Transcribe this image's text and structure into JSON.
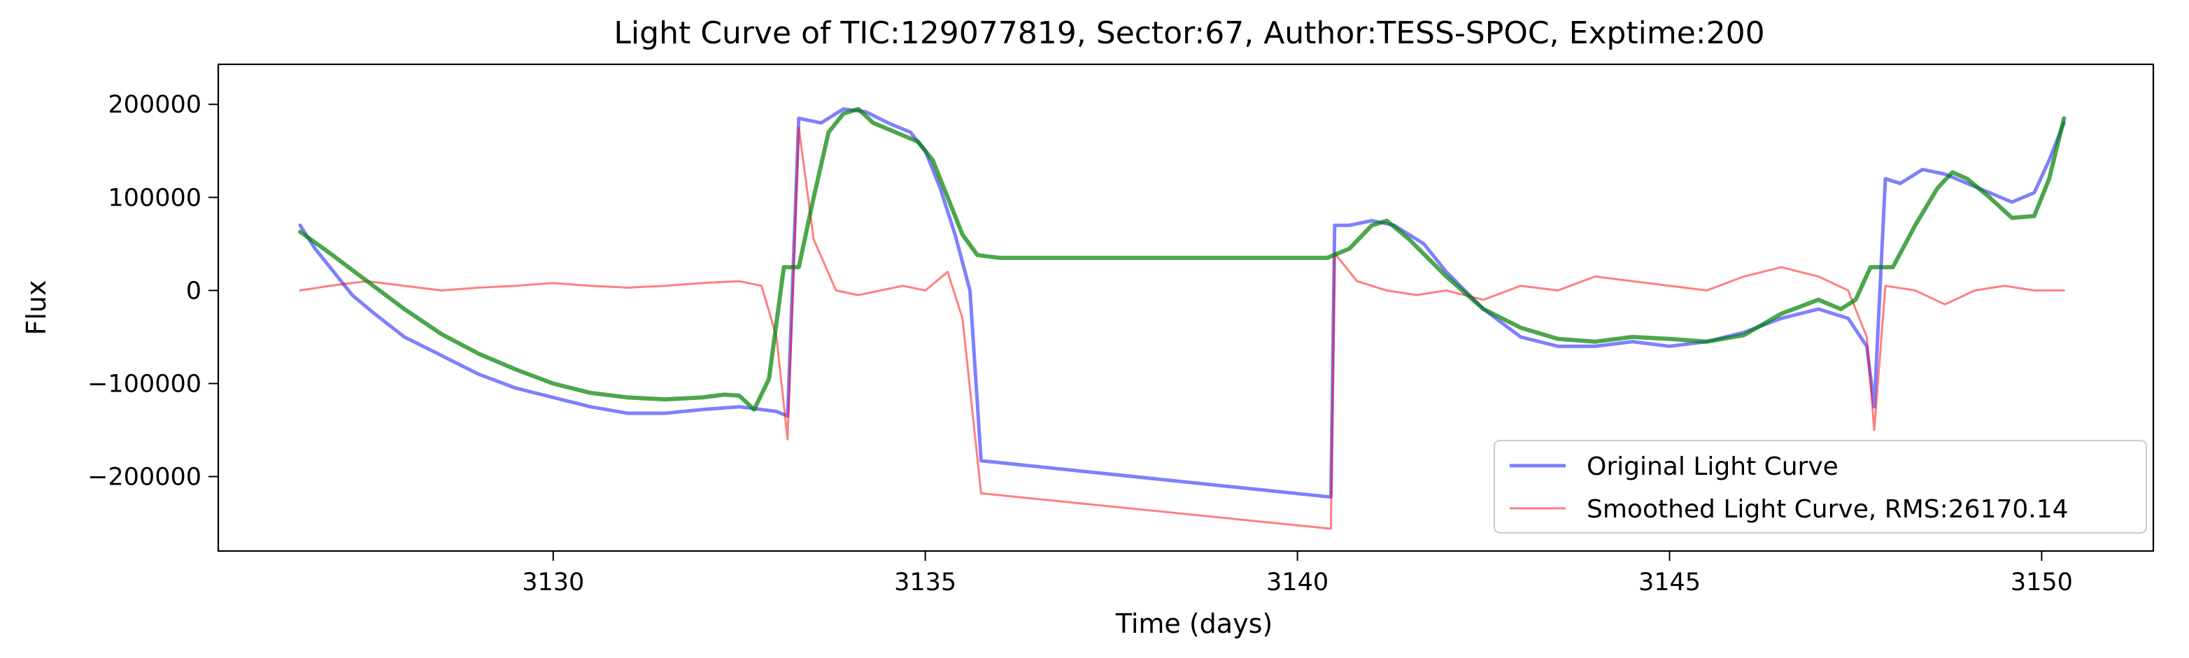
{
  "chart_data": {
    "type": "line",
    "title": "Light Curve of TIC:129077819, Sector:67, Author:TESS-SPOC, Exptime:200",
    "xlabel": "Time (days)",
    "ylabel": "Flux",
    "xlim": [
      3125.5,
      3151.5
    ],
    "ylim": [
      -280000,
      243000
    ],
    "xticks": [
      3130,
      3135,
      3140,
      3145,
      3150
    ],
    "xtick_labels": [
      "3130",
      "3135",
      "3140",
      "3145",
      "3150"
    ],
    "yticks": [
      200000,
      100000,
      0,
      -100000,
      -200000
    ],
    "ytick_labels": [
      "200000",
      "100000",
      "0",
      "−100000",
      "−200000"
    ],
    "grid": false,
    "legend_position": "lower right",
    "series": [
      {
        "name": "Original Light Curve",
        "color": "#0000ff",
        "x": [
          3126.6,
          3126.8,
          3127.0,
          3127.3,
          3127.6,
          3128.0,
          3128.5,
          3129.0,
          3129.5,
          3130.0,
          3130.5,
          3131.0,
          3131.5,
          3132.0,
          3132.5,
          3132.8,
          3133.0,
          3133.15,
          3133.3,
          3133.6,
          3133.9,
          3134.2,
          3134.5,
          3134.8,
          3135.0,
          3135.2,
          3135.4,
          3135.6,
          3135.75,
          3140.45,
          3140.5,
          3140.7,
          3141.0,
          3141.3,
          3141.7,
          3142.0,
          3142.5,
          3143.0,
          3143.5,
          3144.0,
          3144.5,
          3145.0,
          3145.5,
          3146.0,
          3146.5,
          3147.0,
          3147.4,
          3147.65,
          3147.75,
          3147.9,
          3148.1,
          3148.4,
          3148.7,
          3149.0,
          3149.3,
          3149.6,
          3149.9,
          3150.1,
          3150.3
        ],
        "y": [
          70000,
          45000,
          25000,
          -5000,
          -25000,
          -50000,
          -70000,
          -90000,
          -105000,
          -115000,
          -125000,
          -132000,
          -132000,
          -128000,
          -125000,
          -128000,
          -130000,
          -135000,
          185000,
          180000,
          195000,
          192000,
          180000,
          170000,
          150000,
          110000,
          60000,
          0,
          -183000,
          -222000,
          70000,
          70000,
          75000,
          70000,
          50000,
          20000,
          -20000,
          -50000,
          -60000,
          -60000,
          -55000,
          -60000,
          -55000,
          -45000,
          -30000,
          -20000,
          -30000,
          -60000,
          -125000,
          120000,
          115000,
          130000,
          125000,
          115000,
          105000,
          95000,
          105000,
          140000,
          180000
        ]
      },
      {
        "name": "Smoothed Light Curve, RMS:26170.14",
        "color": "#ff0000",
        "x": [
          3126.6,
          3127.0,
          3127.5,
          3128.0,
          3128.5,
          3129.0,
          3129.5,
          3130.0,
          3130.5,
          3131.0,
          3131.5,
          3132.0,
          3132.5,
          3132.8,
          3133.0,
          3133.15,
          3133.3,
          3133.5,
          3133.8,
          3134.1,
          3134.4,
          3134.7,
          3135.0,
          3135.3,
          3135.5,
          3135.75,
          3140.45,
          3140.5,
          3140.8,
          3141.2,
          3141.6,
          3142.0,
          3142.5,
          3143.0,
          3143.5,
          3144.0,
          3144.5,
          3145.0,
          3145.5,
          3146.0,
          3146.5,
          3147.0,
          3147.4,
          3147.65,
          3147.75,
          3147.9,
          3148.3,
          3148.7,
          3149.1,
          3149.5,
          3149.9,
          3150.3
        ],
        "y": [
          0,
          5000,
          10000,
          5000,
          0,
          3000,
          5000,
          8000,
          5000,
          3000,
          5000,
          8000,
          10000,
          5000,
          -50000,
          -160000,
          175000,
          55000,
          0,
          -5000,
          0,
          5000,
          0,
          20000,
          -30000,
          -218000,
          -256000,
          40000,
          10000,
          0,
          -5000,
          0,
          -10000,
          5000,
          0,
          15000,
          10000,
          5000,
          0,
          15000,
          25000,
          15000,
          0,
          -50000,
          -150000,
          5000,
          0,
          -15000,
          0,
          5000,
          0,
          0
        ]
      },
      {
        "name": "",
        "color": "#008000",
        "x": [
          3126.6,
          3127.0,
          3127.5,
          3128.0,
          3128.5,
          3129.0,
          3129.5,
          3130.0,
          3130.5,
          3131.0,
          3131.5,
          3132.0,
          3132.3,
          3132.5,
          3132.7,
          3132.9,
          3133.1,
          3133.3,
          3133.5,
          3133.7,
          3133.9,
          3134.1,
          3134.3,
          3134.6,
          3134.9,
          3135.1,
          3135.3,
          3135.5,
          3135.7,
          3136.0,
          3140.4,
          3140.7,
          3141.0,
          3141.2,
          3141.5,
          3142.0,
          3142.5,
          3143.0,
          3143.5,
          3144.0,
          3144.5,
          3145.0,
          3145.5,
          3146.0,
          3146.5,
          3147.0,
          3147.3,
          3147.5,
          3147.7,
          3148.0,
          3148.3,
          3148.6,
          3148.8,
          3149.0,
          3149.3,
          3149.6,
          3149.9,
          3150.1,
          3150.3
        ],
        "y": [
          63000,
          40000,
          10000,
          -20000,
          -47000,
          -68000,
          -85000,
          -100000,
          -110000,
          -115000,
          -117000,
          -115000,
          -112000,
          -113000,
          -128000,
          -95000,
          25000,
          25000,
          100000,
          170000,
          190000,
          195000,
          180000,
          170000,
          160000,
          140000,
          100000,
          60000,
          38000,
          35000,
          35000,
          45000,
          70000,
          75000,
          55000,
          15000,
          -20000,
          -40000,
          -52000,
          -55000,
          -50000,
          -52000,
          -55000,
          -48000,
          -25000,
          -10000,
          -20000,
          -10000,
          25000,
          25000,
          70000,
          110000,
          127000,
          120000,
          100000,
          78000,
          80000,
          120000,
          185000
        ]
      }
    ]
  }
}
